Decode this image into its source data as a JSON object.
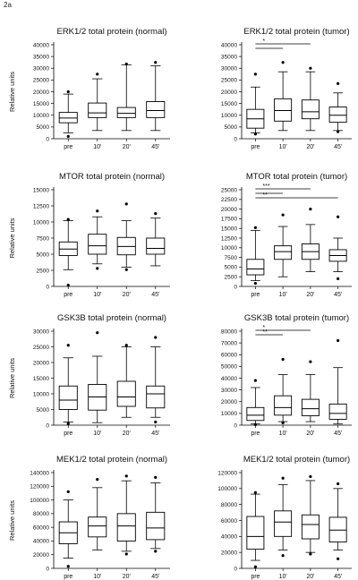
{
  "figure_label": "2a",
  "chart_data": [
    {
      "type": "boxplot",
      "title": "ERK1/2 total protein (normal)",
      "ylabel": "Relative units",
      "ylim": [
        0,
        40000
      ],
      "yticks": [
        0,
        5000,
        10000,
        15000,
        20000,
        25000,
        30000,
        35000,
        40000
      ],
      "categories": [
        "pre",
        "10'",
        "20'",
        "45'"
      ],
      "boxes": [
        {
          "whisker_low": 2500,
          "q1": 6800,
          "median": 8800,
          "q3": 11200,
          "whisker_high": 19000,
          "outliers": [
            20000,
            1000
          ]
        },
        {
          "whisker_low": 3500,
          "q1": 9000,
          "median": 11000,
          "q3": 15200,
          "whisker_high": 25500,
          "outliers": [
            27500
          ]
        },
        {
          "whisker_low": 3500,
          "q1": 9000,
          "median": 10800,
          "q3": 13300,
          "whisker_high": 31500,
          "outliers": [
            31800
          ]
        },
        {
          "whisker_low": 3500,
          "q1": 9000,
          "median": 12000,
          "q3": 15800,
          "whisker_high": 31000,
          "outliers": [
            32500
          ]
        }
      ],
      "significance": []
    },
    {
      "type": "boxplot",
      "title": "ERK1/2 total protein (tumor)",
      "ylabel": "",
      "ylim": [
        0,
        40000
      ],
      "yticks": [
        0,
        5000,
        10000,
        15000,
        20000,
        25000,
        30000,
        35000,
        40000
      ],
      "categories": [
        "pre",
        "10'",
        "20'",
        "45'"
      ],
      "boxes": [
        {
          "whisker_low": 2500,
          "q1": 4500,
          "median": 8500,
          "q3": 12500,
          "whisker_high": 22000,
          "outliers": [
            27500,
            2000
          ]
        },
        {
          "whisker_low": 3500,
          "q1": 7500,
          "median": 12000,
          "q3": 17000,
          "whisker_high": 28500,
          "outliers": [
            32500
          ]
        },
        {
          "whisker_low": 3500,
          "q1": 8500,
          "median": 11500,
          "q3": 16500,
          "whisker_high": 28500,
          "outliers": [
            30000
          ]
        },
        {
          "whisker_low": 3500,
          "q1": 7000,
          "median": 10000,
          "q3": 13500,
          "whisker_high": 19500,
          "outliers": [
            23500,
            3000
          ]
        }
      ],
      "significance": [
        {
          "from": 0,
          "to": 2,
          "label": "*"
        },
        {
          "from": 0,
          "to": 1,
          "label": ""
        }
      ]
    },
    {
      "type": "boxplot",
      "title": "MTOR total protein (normal)",
      "ylabel": "Relative units",
      "ylim": [
        0,
        15000
      ],
      "yticks": [
        0,
        2500,
        5000,
        7500,
        10000,
        12500,
        15000
      ],
      "categories": [
        "pre",
        "10'",
        "20'",
        "45'"
      ],
      "boxes": [
        {
          "whisker_low": 2600,
          "q1": 4800,
          "median": 5800,
          "q3": 6900,
          "whisker_high": 10200,
          "outliers": [
            10400,
            200
          ]
        },
        {
          "whisker_low": 3500,
          "q1": 5000,
          "median": 6300,
          "q3": 8100,
          "whisker_high": 10800,
          "outliers": [
            11700,
            2800
          ]
        },
        {
          "whisker_low": 3000,
          "q1": 4900,
          "median": 6200,
          "q3": 7600,
          "whisker_high": 10200,
          "outliers": [
            12800,
            2600
          ]
        },
        {
          "whisker_low": 3200,
          "q1": 5000,
          "median": 5900,
          "q3": 7500,
          "whisker_high": 10600,
          "outliers": [
            11300
          ]
        }
      ],
      "significance": []
    },
    {
      "type": "boxplot",
      "title": "MTOR total protein (tumor)",
      "ylabel": "",
      "ylim": [
        0,
        25000
      ],
      "yticks": [
        0,
        2500,
        5000,
        7500,
        10000,
        12500,
        15000,
        17500,
        20000,
        22500,
        25000
      ],
      "categories": [
        "pre",
        "10'",
        "20'",
        "45'"
      ],
      "boxes": [
        {
          "whisker_low": 1500,
          "q1": 3000,
          "median": 4500,
          "q3": 7000,
          "whisker_high": 14500,
          "outliers": [
            15200,
            800
          ]
        },
        {
          "whisker_low": 2500,
          "q1": 7000,
          "median": 9000,
          "q3": 10500,
          "whisker_high": 15500,
          "outliers": [
            18500
          ]
        },
        {
          "whisker_low": 3800,
          "q1": 7000,
          "median": 9000,
          "q3": 11000,
          "whisker_high": 16000,
          "outliers": [
            20000
          ]
        },
        {
          "whisker_low": 3800,
          "q1": 6500,
          "median": 8000,
          "q3": 9500,
          "whisker_high": 12500,
          "outliers": [
            18000,
            2000
          ]
        }
      ],
      "significance": [
        {
          "from": 0,
          "to": 2,
          "label": "***"
        },
        {
          "from": 0,
          "to": 1,
          "label": ""
        },
        {
          "from": 0,
          "to": 3,
          "label": "**"
        }
      ]
    },
    {
      "type": "boxplot",
      "title": "GSK3B total protein (normal)",
      "ylabel": "Relative units",
      "ylim": [
        0,
        30000
      ],
      "yticks": [
        0,
        5000,
        10000,
        15000,
        20000,
        25000,
        30000
      ],
      "categories": [
        "pre",
        "10'",
        "20'",
        "45'"
      ],
      "boxes": [
        {
          "whisker_low": 1000,
          "q1": 5000,
          "median": 8000,
          "q3": 12500,
          "whisker_high": 21500,
          "outliers": [
            25500,
            500
          ]
        },
        {
          "whisker_low": 800,
          "q1": 4800,
          "median": 9000,
          "q3": 13000,
          "whisker_high": 22000,
          "outliers": [
            29500
          ]
        },
        {
          "whisker_low": 2500,
          "q1": 6000,
          "median": 9000,
          "q3": 14000,
          "whisker_high": 25000,
          "outliers": [
            25500
          ]
        },
        {
          "whisker_low": 2500,
          "q1": 5500,
          "median": 10000,
          "q3": 12500,
          "whisker_high": 25000,
          "outliers": [
            28000,
            1000
          ]
        }
      ],
      "significance": []
    },
    {
      "type": "boxplot",
      "title": "GSK3B total protein (tumor)",
      "ylabel": "",
      "ylim": [
        0,
        80000
      ],
      "yticks": [
        0,
        10000,
        20000,
        30000,
        40000,
        50000,
        60000,
        70000,
        80000
      ],
      "categories": [
        "pre",
        "10'",
        "20'",
        "45'"
      ],
      "boxes": [
        {
          "whisker_low": 1000,
          "q1": 4000,
          "median": 8500,
          "q3": 15000,
          "whisker_high": 32000,
          "outliers": [
            38000,
            500
          ]
        },
        {
          "whisker_low": 3000,
          "q1": 8500,
          "median": 15000,
          "q3": 25000,
          "whisker_high": 43000,
          "outliers": [
            56000,
            2000
          ]
        },
        {
          "whisker_low": 3000,
          "q1": 8000,
          "median": 14000,
          "q3": 22000,
          "whisker_high": 43000,
          "outliers": [
            54000
          ]
        },
        {
          "whisker_low": 1000,
          "q1": 5000,
          "median": 10000,
          "q3": 18000,
          "whisker_high": 49000,
          "outliers": [
            72000
          ]
        }
      ],
      "significance": [
        {
          "from": 0,
          "to": 2,
          "label": "*"
        },
        {
          "from": 0,
          "to": 1,
          "label": "**"
        }
      ]
    },
    {
      "type": "boxplot",
      "title": "MEK1/2 total protein (normal)",
      "ylabel": "Relative units",
      "ylim": [
        0,
        140000
      ],
      "yticks": [
        0,
        20000,
        40000,
        60000,
        80000,
        100000,
        120000,
        140000
      ],
      "categories": [
        "pre",
        "10'",
        "20'",
        "45'"
      ],
      "boxes": [
        {
          "whisker_low": 15000,
          "q1": 36000,
          "median": 52000,
          "q3": 68000,
          "whisker_high": 100000,
          "outliers": [
            112000,
            3000
          ]
        },
        {
          "whisker_low": 27000,
          "q1": 46000,
          "median": 62000,
          "q3": 75000,
          "whisker_high": 118000,
          "outliers": [
            130000
          ]
        },
        {
          "whisker_low": 25000,
          "q1": 40000,
          "median": 62000,
          "q3": 80000,
          "whisker_high": 128000,
          "outliers": [
            135000,
            21000
          ]
        },
        {
          "whisker_low": 29000,
          "q1": 42000,
          "median": 59000,
          "q3": 82000,
          "whisker_high": 125000,
          "outliers": [
            133000,
            25000
          ]
        }
      ],
      "significance": []
    },
    {
      "type": "boxplot",
      "title": "MEK1/2 total protein (tumor)",
      "ylabel": "",
      "ylim": [
        0,
        120000
      ],
      "yticks": [
        0,
        20000,
        40000,
        60000,
        80000,
        100000,
        120000
      ],
      "categories": [
        "pre",
        "10'",
        "20'",
        "45'"
      ],
      "boxes": [
        {
          "whisker_low": 10000,
          "q1": 24000,
          "median": 40000,
          "q3": 65000,
          "whisker_high": 93000,
          "outliers": [
            95000,
            2000
          ]
        },
        {
          "whisker_low": 23000,
          "q1": 40000,
          "median": 58000,
          "q3": 72000,
          "whisker_high": 105000,
          "outliers": [
            113000,
            16000
          ]
        },
        {
          "whisker_low": 20000,
          "q1": 37000,
          "median": 55000,
          "q3": 67000,
          "whisker_high": 110000,
          "outliers": [
            115000,
            18000
          ]
        },
        {
          "whisker_low": 23000,
          "q1": 33000,
          "median": 48000,
          "q3": 64000,
          "whisker_high": 100000,
          "outliers": [
            106000,
            12000
          ]
        }
      ],
      "significance": []
    }
  ]
}
